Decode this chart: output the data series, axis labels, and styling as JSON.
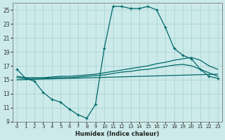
{
  "xlabel": "Humidex (Indice chaleur)",
  "bg_color": "#cceaea",
  "grid_color": "#aad4d4",
  "line_color": "#006868",
  "xlim": [
    -0.5,
    23.5
  ],
  "ylim": [
    9,
    26
  ],
  "yticks": [
    9,
    11,
    13,
    15,
    17,
    19,
    21,
    23,
    25
  ],
  "xticks": [
    0,
    1,
    2,
    3,
    4,
    5,
    6,
    7,
    8,
    9,
    10,
    11,
    12,
    13,
    14,
    15,
    16,
    17,
    18,
    19,
    20,
    21,
    22,
    23
  ],
  "series0": {
    "x": [
      0,
      1,
      2,
      3,
      4,
      5,
      6,
      7,
      8,
      9,
      10,
      11,
      12,
      13,
      14,
      15,
      16,
      17,
      18,
      19,
      20,
      21,
      22,
      23
    ],
    "y": [
      16.5,
      15.2,
      14.8,
      13.2,
      12.2,
      11.8,
      10.8,
      10.0,
      9.5,
      11.5,
      19.5,
      25.5,
      25.5,
      25.2,
      25.2,
      25.5,
      25.0,
      22.5,
      19.5,
      18.5,
      18.0,
      16.5,
      15.5,
      15.2
    ]
  },
  "series1": {
    "x": [
      0,
      1,
      2,
      3,
      4,
      5,
      6,
      7,
      8,
      9,
      10,
      11,
      12,
      13,
      14,
      15,
      16,
      17,
      18,
      19,
      20,
      21,
      22,
      23
    ],
    "y": [
      15.5,
      15.3,
      15.3,
      15.3,
      15.4,
      15.5,
      15.5,
      15.6,
      15.7,
      15.8,
      16.0,
      16.2,
      16.4,
      16.6,
      16.8,
      17.0,
      17.3,
      17.5,
      17.8,
      18.0,
      18.2,
      17.8,
      17.0,
      16.5
    ]
  },
  "series2": {
    "x": [
      0,
      1,
      2,
      3,
      4,
      5,
      6,
      7,
      8,
      9,
      10,
      11,
      12,
      13,
      14,
      15,
      16,
      17,
      18,
      19,
      20,
      21,
      22,
      23
    ],
    "y": [
      15.3,
      15.2,
      15.2,
      15.2,
      15.3,
      15.3,
      15.3,
      15.4,
      15.5,
      15.6,
      15.7,
      15.9,
      16.1,
      16.2,
      16.4,
      16.5,
      16.7,
      16.9,
      17.1,
      17.2,
      17.0,
      16.5,
      16.0,
      15.5
    ]
  },
  "series3": {
    "x": [
      0,
      23
    ],
    "y": [
      15.0,
      15.8
    ]
  }
}
